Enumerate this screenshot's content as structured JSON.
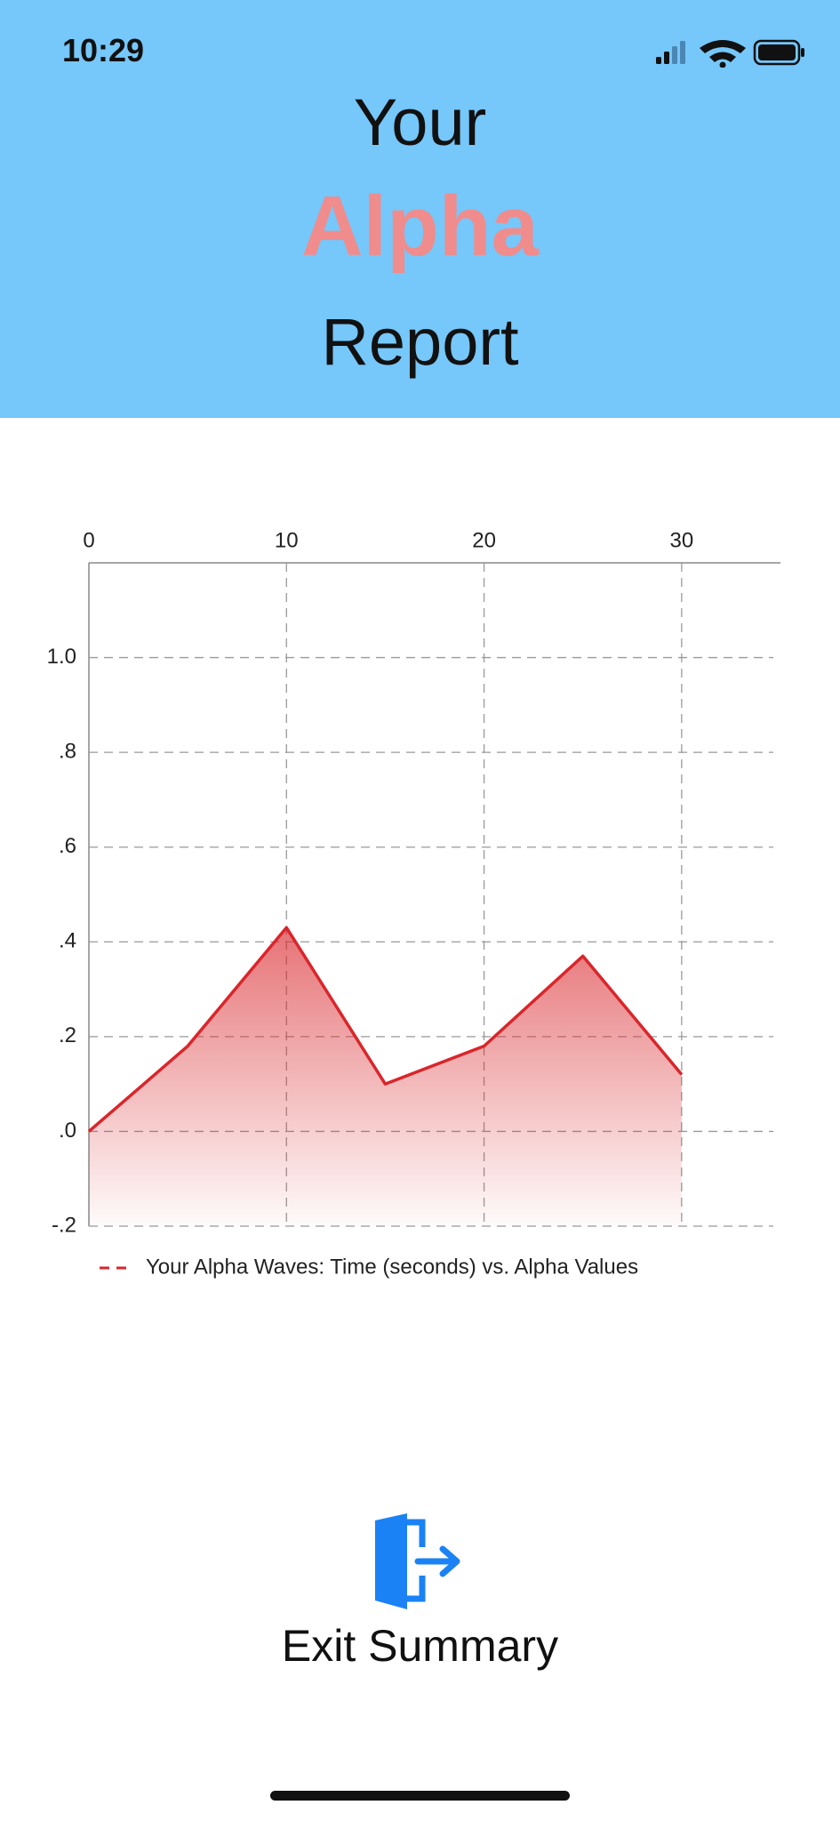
{
  "status_bar": {
    "time": "10:29"
  },
  "header": {
    "line1": "Your",
    "line2": "Alpha",
    "line3": "Report"
  },
  "chart_data": {
    "type": "line",
    "x": [
      0,
      5,
      10,
      15,
      20,
      25,
      30
    ],
    "series": [
      {
        "name": "Your Alpha Waves: Time (seconds) vs. Alpha Values",
        "color": "#d9262b",
        "values": [
          0,
          0.18,
          0.43,
          0.1,
          0.18,
          0.37,
          0.12
        ]
      }
    ],
    "xlim": [
      0,
      35
    ],
    "xticks": [
      0,
      10,
      20,
      30
    ],
    "x_axis_side": "top",
    "ylim": [
      -0.2,
      1.2
    ],
    "yticks": [
      {
        "value": -0.2,
        "label": "-.2"
      },
      {
        "value": 0,
        "label": ".0"
      },
      {
        "value": 0.2,
        "label": ".2"
      },
      {
        "value": 0.4,
        "label": ".4"
      },
      {
        "value": 0.6,
        "label": ".6"
      },
      {
        "value": 0.8,
        "label": ".8"
      },
      {
        "value": 1,
        "label": "1.0"
      }
    ],
    "grid": true,
    "area_fill": true,
    "legend": "bottom"
  },
  "button": {
    "label": "Exit Summary"
  }
}
